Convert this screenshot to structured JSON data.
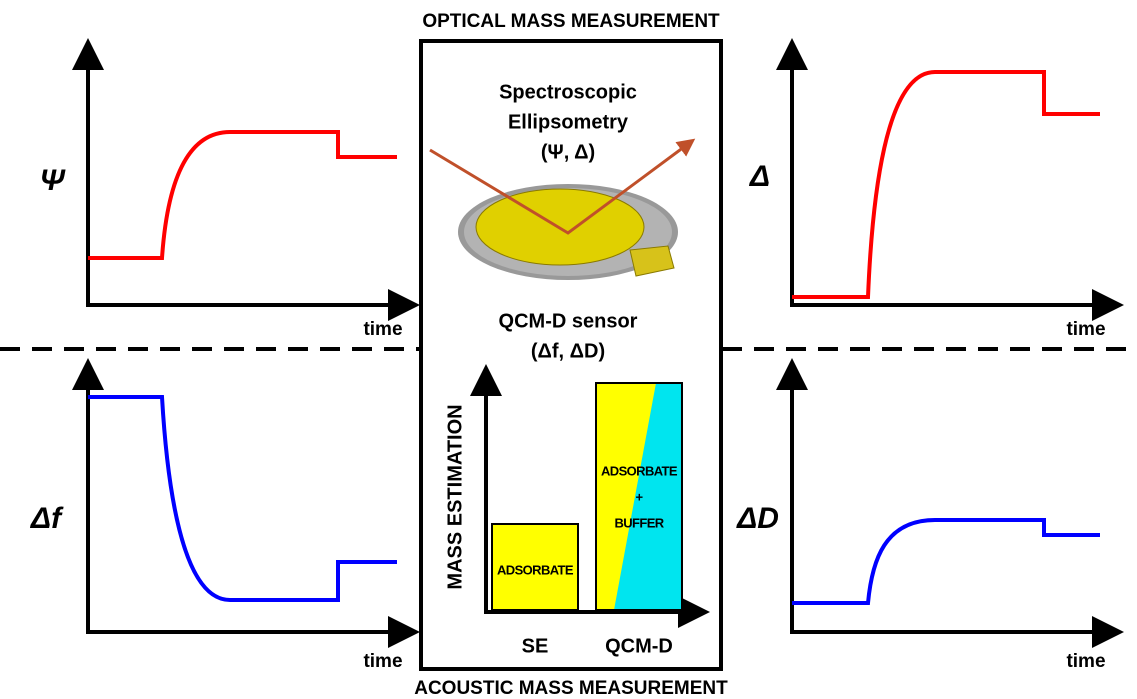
{
  "header": {
    "top": "OPTICAL MASS MEASUREMENT",
    "bottom": "ACOUSTIC MASS MEASUREMENT"
  },
  "panels": [
    {
      "y_label": "Ψ",
      "x_label": "time"
    },
    {
      "y_label": "Δ",
      "x_label": "time"
    },
    {
      "y_label": "Δf",
      "x_label": "time"
    },
    {
      "y_label": "ΔD",
      "x_label": "time"
    }
  ],
  "center": {
    "method_lines": [
      "Spectroscopic",
      "Ellipsometry",
      "(Ψ, Δ)"
    ],
    "sensor_lines": [
      "QCM-D sensor",
      "(Δf, ΔD)"
    ],
    "bar_chart": {
      "y_label": "MASS ESTIMATION",
      "categories": [
        "SE",
        "QCM-D"
      ],
      "bar_labels": [
        [
          "ADSORBATE"
        ],
        [
          "ADSORBATE",
          "+",
          "BUFFER"
        ]
      ]
    }
  }
}
